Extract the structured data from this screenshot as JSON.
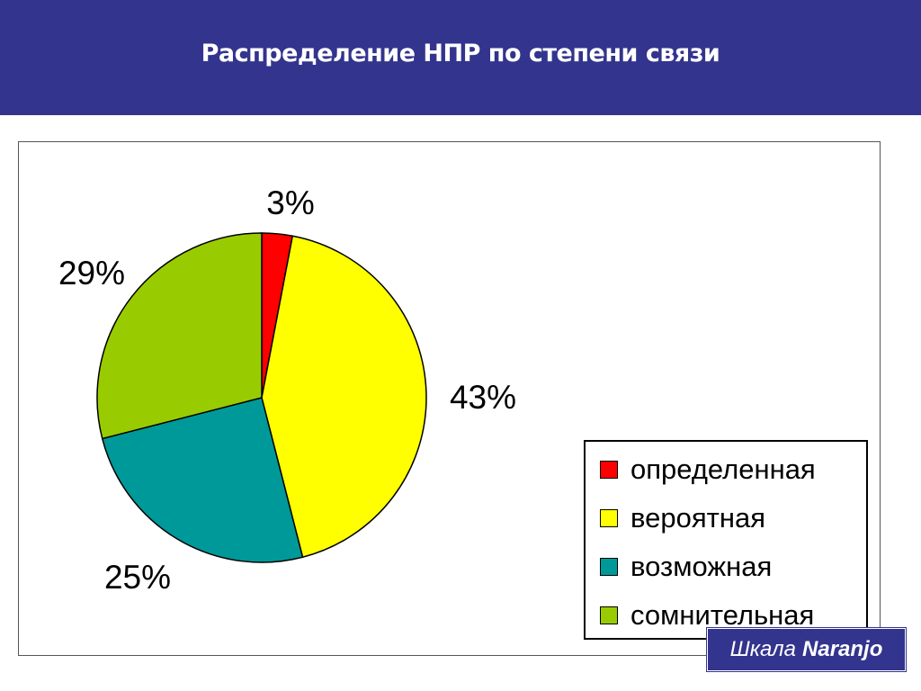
{
  "slide": {
    "title": "Распределение НПР по степени связи",
    "footer_prefix": "Шкала",
    "footer_name": "Naranjo",
    "header_color": "#33348e"
  },
  "chart_data": {
    "type": "pie",
    "title": "",
    "legend_position": "right",
    "slices": [
      {
        "label": "определенная",
        "value": 3,
        "display": "3%",
        "color": "#ff0000"
      },
      {
        "label": "вероятная",
        "value": 43,
        "display": "43%",
        "color": "#ffff00"
      },
      {
        "label": "возможная",
        "value": 25,
        "display": "25%",
        "color": "#009999"
      },
      {
        "label": "сомнительная",
        "value": 29,
        "display": "29%",
        "color": "#99cc00"
      }
    ]
  }
}
